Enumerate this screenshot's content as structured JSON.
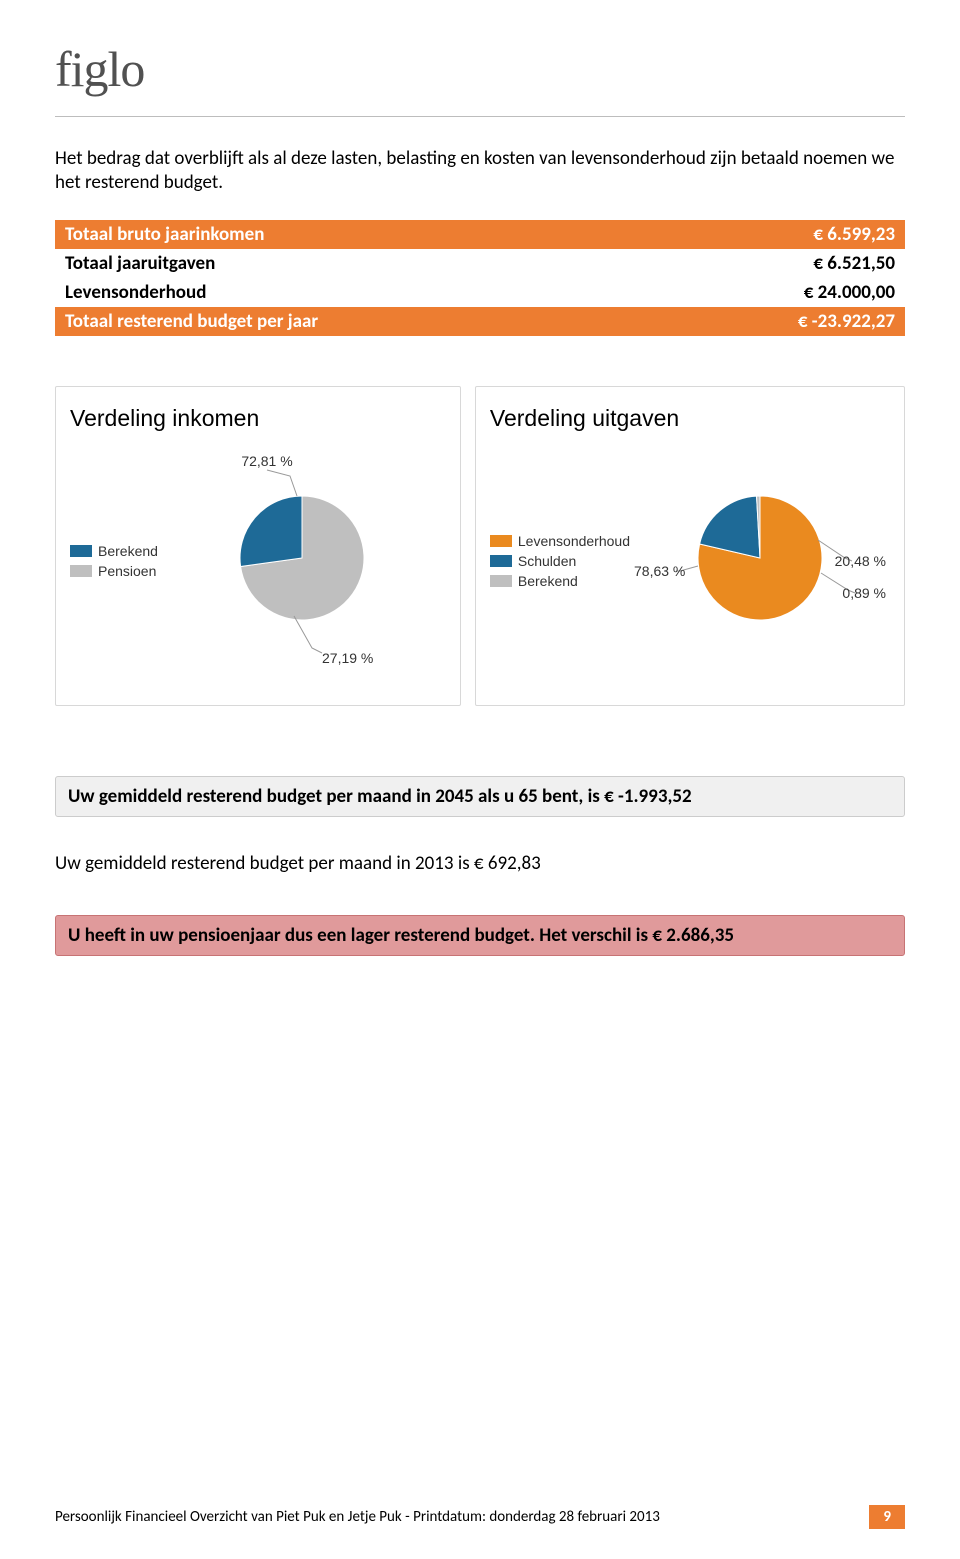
{
  "logo_text": "figlo",
  "intro": "Het bedrag dat overblijft als al deze lasten, belasting en kosten van levensonderhoud zijn betaald noemen we het resterend budget.",
  "table": {
    "rows": [
      {
        "label": "Totaal bruto jaarinkomen",
        "value": "€ 6.599,23",
        "highlight": true
      },
      {
        "label": "Totaal jaaruitgaven",
        "value": "€ 6.521,50",
        "highlight": false
      },
      {
        "label": "Levensonderhoud",
        "value": "€ 24.000,00",
        "highlight": false
      },
      {
        "label": "Totaal resterend budget per jaar",
        "value": "€ -23.922,27",
        "highlight": true
      }
    ],
    "highlight_bg": "#ed7d31",
    "highlight_fg": "#ffffff"
  },
  "chart1": {
    "title": "Verdeling inkomen",
    "legend": [
      {
        "label": "Berekend",
        "color": "#1e6a97"
      },
      {
        "label": "Pensioen",
        "color": "#bfbfbf"
      }
    ],
    "slices": [
      {
        "value": 72.81,
        "color": "#bfbfbf",
        "label": "72,81 %"
      },
      {
        "value": 27.19,
        "color": "#1e6a97",
        "label": "27,19 %"
      }
    ]
  },
  "chart2": {
    "title": "Verdeling uitgaven",
    "legend": [
      {
        "label": "Levensonderhoud",
        "color": "#ea8a1f"
      },
      {
        "label": "Schulden",
        "color": "#1e6a97"
      },
      {
        "label": "Berekend",
        "color": "#bfbfbf"
      }
    ],
    "slices": [
      {
        "value": 78.63,
        "color": "#ea8a1f",
        "label": "78,63 %"
      },
      {
        "value": 20.48,
        "color": "#1e6a97",
        "label": "20,48 %"
      },
      {
        "value": 0.89,
        "color": "#bfbfbf",
        "label": "0,89 %"
      }
    ]
  },
  "grey_box": "Uw gemiddeld resterend budget per maand in 2045 als u 65 bent, is € -1.993,52",
  "plain_line": "Uw gemiddeld resterend budget per maand in 2013 is € 692,83",
  "red_box": "U heeft in uw pensioenjaar dus een lager resterend budget. Het verschil is € 2.686,35",
  "footer_text": "Persoonlijk Financieel Overzicht van Piet Puk en Jetje Puk - Printdatum: donderdag 28 februari 2013",
  "page_number": "9",
  "colors": {
    "accent": "#ed7d31",
    "grey_box_bg": "#f0f0f0",
    "red_box_bg": "#e09a9b"
  }
}
